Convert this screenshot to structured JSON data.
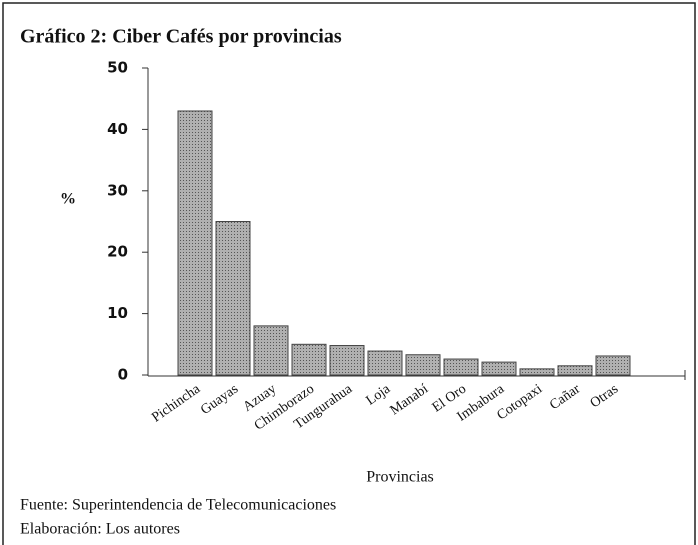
{
  "chart_data": {
    "type": "bar",
    "title": "Gráfico 2: Ciber Cafés por provincias",
    "ylabel": "%",
    "xlabel": "Provincias",
    "categories": [
      "Pichincha",
      "Guayas",
      "Azuay",
      "Chimborazo",
      "Tungurahua",
      "Loja",
      "Manabí",
      "El Oro",
      "Imbabura",
      "Cotopaxi",
      "Cañar",
      "Otras"
    ],
    "values": [
      43,
      25,
      8,
      5,
      4.8,
      3.9,
      3.3,
      2.6,
      2.1,
      1,
      1.5,
      3.1
    ],
    "color": "#9a9a9a",
    "ylim": [
      0,
      50
    ],
    "yticks": [
      0,
      10,
      20,
      30,
      40,
      50
    ],
    "notes": [
      "Fuente: Superintendencia de Telecomunicaciones",
      "Elaboración: Los autores"
    ]
  }
}
